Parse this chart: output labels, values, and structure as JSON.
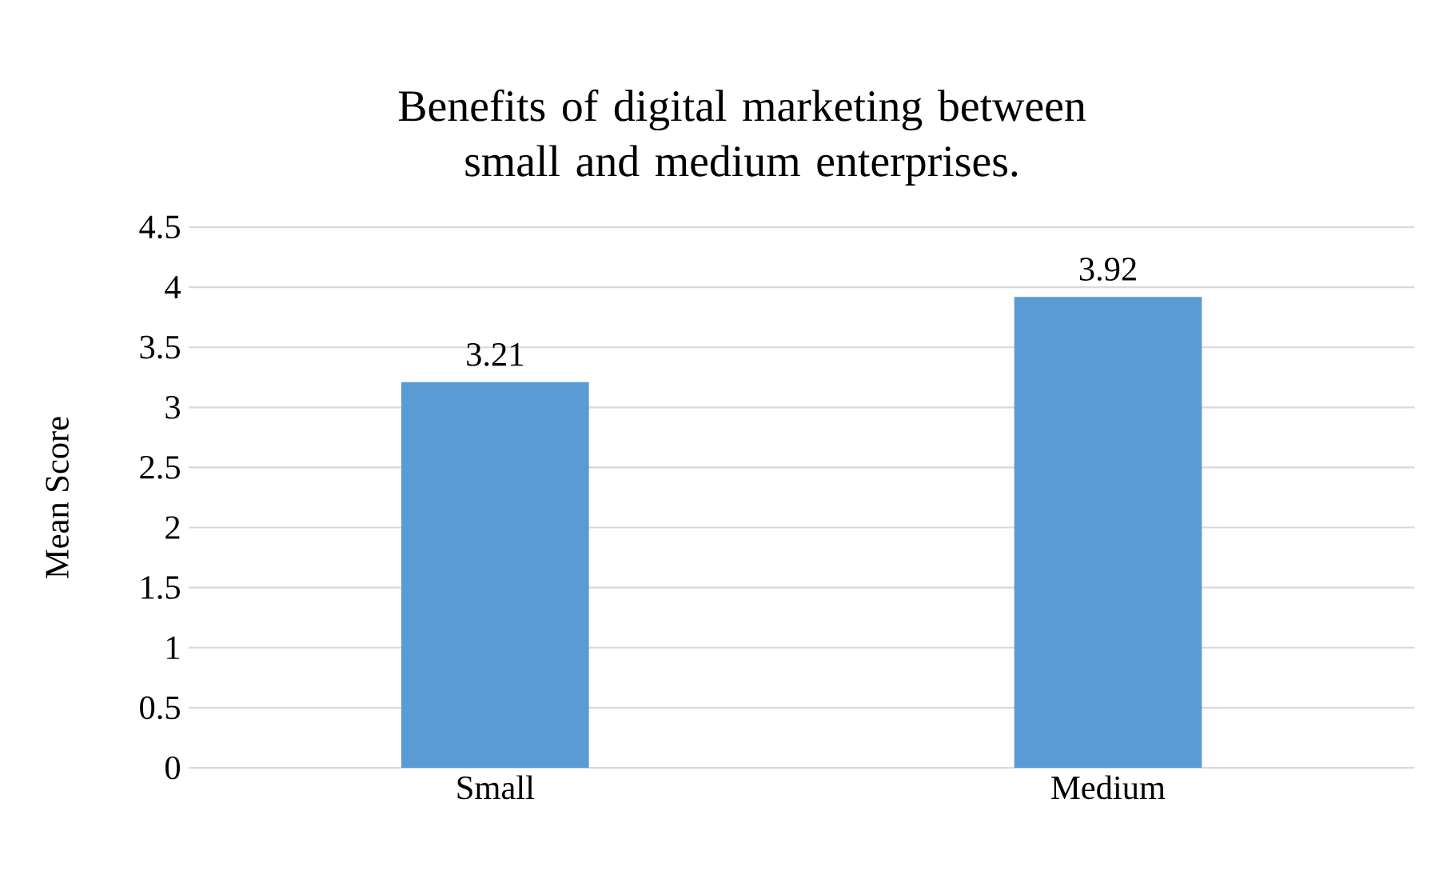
{
  "chart_data": {
    "type": "bar",
    "title": "Benefits of digital marketing between small and medium enterprises.",
    "ylabel": "Mean Score",
    "categories": [
      "Small",
      "Medium"
    ],
    "values": [
      3.21,
      3.92
    ],
    "color": "#5b9bd5",
    "ylim": [
      0,
      4.5
    ],
    "yticks": [
      0,
      0.5,
      1,
      1.5,
      2,
      2.5,
      3,
      3.5,
      4,
      4.5
    ],
    "grid": "y",
    "data_labels": true
  }
}
